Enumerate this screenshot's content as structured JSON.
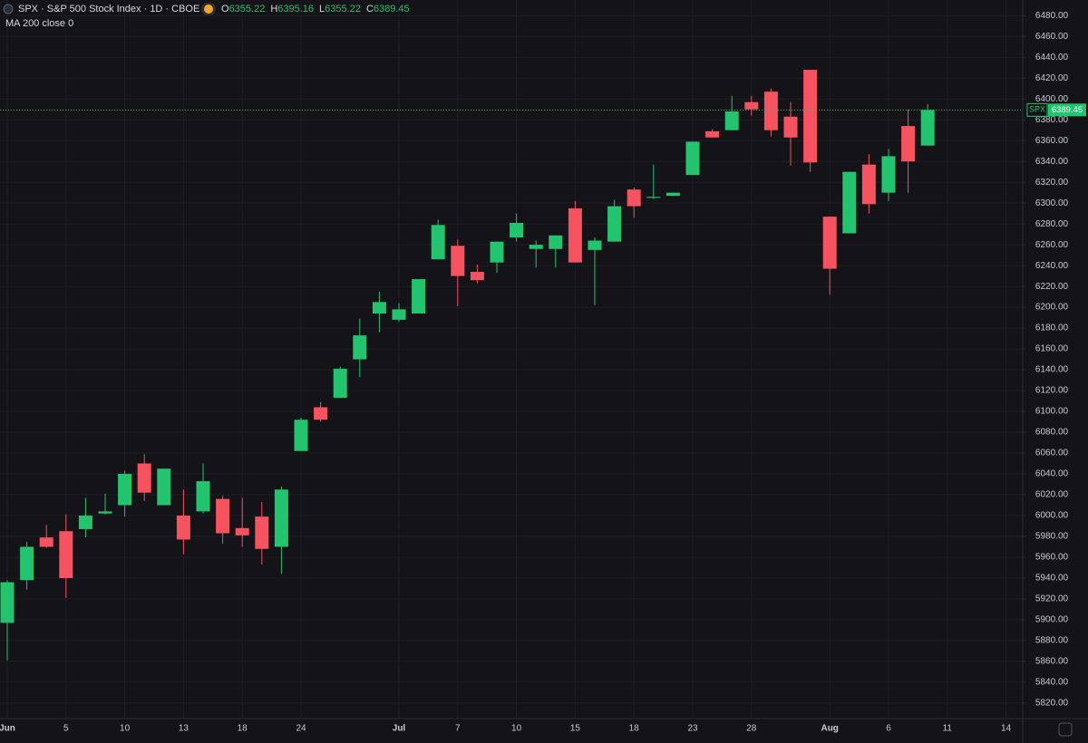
{
  "chart_data": {
    "type": "candlestick",
    "title": "SPX · S&P 500 Stock Index · 1D · CBOE",
    "indicator": "MA 200 close 0",
    "ohlc_labels": [
      "O",
      "H",
      "L",
      "C"
    ],
    "price_tag": "SPX",
    "up_color": "#22c56e",
    "down_color": "#f7525f",
    "grid": true,
    "categories": [
      "Jun",
      null,
      null,
      "5",
      null,
      null,
      "10",
      null,
      null,
      "13",
      null,
      null,
      "18",
      null,
      null,
      "24",
      null,
      null,
      null,
      null,
      "Jul",
      null,
      null,
      "7",
      null,
      null,
      "10",
      null,
      null,
      "15",
      null,
      null,
      "18",
      null,
      null,
      "23",
      null,
      null,
      "28",
      null,
      null,
      null,
      "Aug",
      null,
      null,
      "6",
      null,
      null,
      "11",
      null,
      null,
      "14"
    ],
    "open": [
      5897,
      5938,
      5979,
      5985,
      5987,
      6002,
      6010,
      6050,
      6010,
      6000,
      6004,
      6016,
      5988,
      5999,
      5970,
      6062,
      6104,
      6113,
      6150,
      6194,
      6188,
      6194,
      6246,
      6259,
      6234,
      6243,
      6267,
      6256,
      6256,
      6295,
      6255,
      6263,
      6313,
      6305,
      6307,
      6327,
      6369,
      6370,
      6397,
      6407,
      6383,
      6428,
      6287,
      6271,
      6337,
      6310,
      6374,
      6355.22,
      null,
      null,
      null,
      null
    ],
    "high": [
      5938,
      5975,
      5991,
      6001,
      6017,
      6021,
      6043,
      6059,
      6045,
      6025,
      6050,
      6019,
      6017,
      6013,
      6028,
      6094,
      6109,
      6143,
      6189,
      6215,
      6204,
      6227,
      6284,
      6265,
      6241,
      6263,
      6290,
      6264,
      6269,
      6302,
      6267,
      6303,
      6315,
      6337,
      6310,
      6359,
      6371,
      6403,
      6403,
      6410,
      6397,
      6428,
      6287,
      6330,
      6347,
      6352,
      6390,
      6395.16,
      null,
      null,
      null,
      null
    ],
    "low": [
      5861,
      5929,
      5969,
      5921,
      5979,
      6001,
      5999,
      6014,
      6010,
      5963,
      6002,
      5973,
      5970,
      5953,
      5944,
      6062,
      6090,
      6113,
      6133,
      6176,
      6186,
      6194,
      6246,
      6201,
      6223,
      6233,
      6263,
      6238,
      6238,
      6243,
      6202,
      6263,
      6286,
      6304,
      6307,
      6327,
      6363,
      6370,
      6384,
      6364,
      6336,
      6330,
      6212,
      6271,
      6290,
      6302,
      6310,
      6355.22,
      null,
      null,
      null,
      null
    ],
    "close": [
      5936,
      5970,
      5970,
      5940,
      6000,
      6004,
      6040,
      6022,
      6045,
      5977,
      6033,
      5983,
      5981,
      5968,
      6025,
      6092,
      6092,
      6141,
      6173,
      6205,
      6198,
      6227,
      6279,
      6230,
      6226,
      6263,
      6281,
      6260,
      6269,
      6243,
      6264,
      6297,
      6297,
      6306,
      6310,
      6359,
      6363,
      6388,
      6390,
      6370,
      6363,
      6339,
      6237,
      6330,
      6299,
      6345,
      6340,
      6389.45,
      null,
      null,
      null,
      null
    ],
    "ylim": [
      5806,
      6495
    ],
    "yticks": [
      {
        "value": 5820,
        "label": "5820.00"
      },
      {
        "value": 5840,
        "label": "5840.00"
      },
      {
        "value": 5860,
        "label": "5860.00"
      },
      {
        "value": 5880,
        "label": "5880.00"
      },
      {
        "value": 5900,
        "label": "5900.00"
      },
      {
        "value": 5920,
        "label": "5920.00"
      },
      {
        "value": 5940,
        "label": "5940.00"
      },
      {
        "value": 5960,
        "label": "5960.00"
      },
      {
        "value": 5980,
        "label": "5980.00"
      },
      {
        "value": 6000,
        "label": "6000.00"
      },
      {
        "value": 6020,
        "label": "6020.00"
      },
      {
        "value": 6040,
        "label": "6040.00"
      },
      {
        "value": 6060,
        "label": "6060.00"
      },
      {
        "value": 6080,
        "label": "6080.00"
      },
      {
        "value": 6100,
        "label": "6100.00"
      },
      {
        "value": 6120,
        "label": "6120.00"
      },
      {
        "value": 6140,
        "label": "6140.00"
      },
      {
        "value": 6160,
        "label": "6160.00"
      },
      {
        "value": 6180,
        "label": "6180.00"
      },
      {
        "value": 6200,
        "label": "6200.00"
      },
      {
        "value": 6220,
        "label": "6220.00"
      },
      {
        "value": 6240,
        "label": "6240.00"
      },
      {
        "value": 6260,
        "label": "6260.00"
      },
      {
        "value": 6280,
        "label": "6280.00"
      },
      {
        "value": 6300,
        "label": "6300.00"
      },
      {
        "value": 6320,
        "label": "6320.00"
      },
      {
        "value": 6340,
        "label": "6340.00"
      },
      {
        "value": 6360,
        "label": "6360.00"
      },
      {
        "value": 6380,
        "label": "6380.00"
      },
      {
        "value": 6400,
        "label": "6400.00"
      },
      {
        "value": 6420,
        "label": "6420.00"
      },
      {
        "value": 6440,
        "label": "6440.00"
      },
      {
        "value": 6460,
        "label": "6460.00"
      },
      {
        "value": 6480,
        "label": "6480.00"
      }
    ]
  }
}
